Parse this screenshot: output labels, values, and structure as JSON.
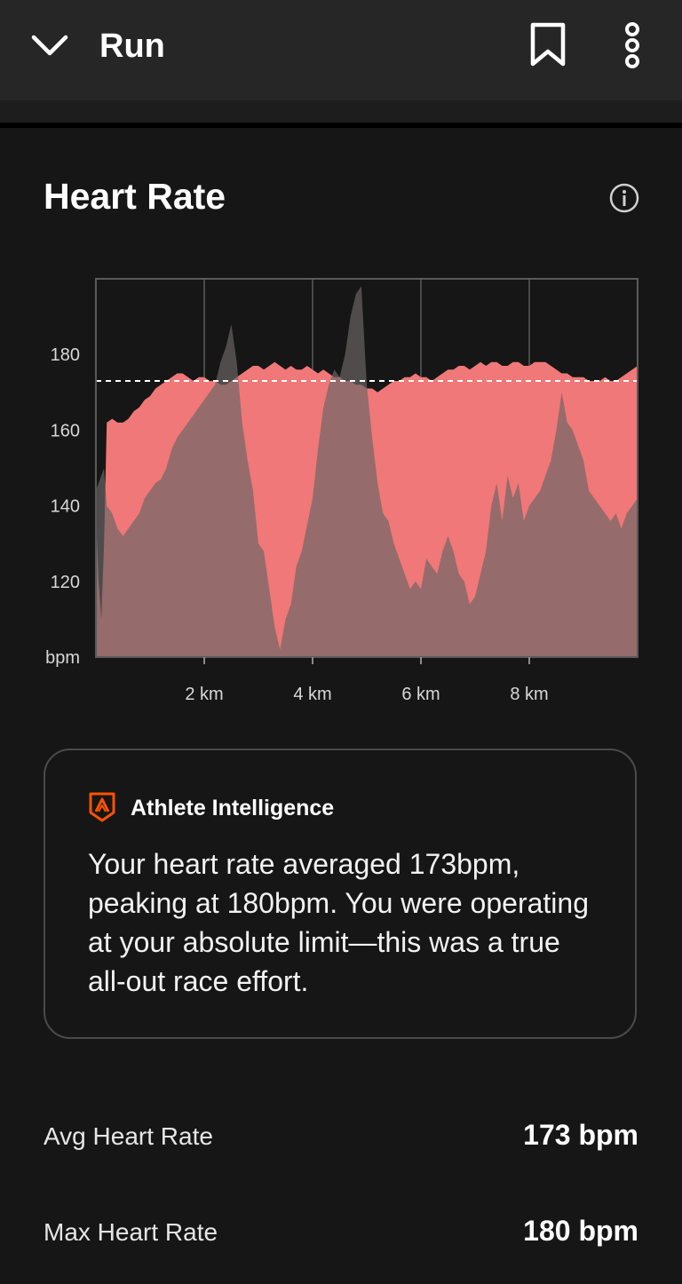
{
  "header": {
    "title": "Run",
    "icons": [
      "chevron-down-icon",
      "bookmark-icon",
      "more-vertical-icon"
    ]
  },
  "section": {
    "title": "Heart Rate",
    "info_icon": "info-icon"
  },
  "chart_data": {
    "type": "area",
    "x_unit": "km",
    "x_ticks": [
      2,
      4,
      6,
      8
    ],
    "x_tick_labels": [
      "2 km",
      "4 km",
      "6 km",
      "8 km"
    ],
    "y_ticks": [
      120,
      140,
      160,
      180
    ],
    "y_tick_labels": [
      "120",
      "140",
      "160",
      "180"
    ],
    "ylabel": "bpm",
    "xlim": [
      0,
      10
    ],
    "ylim": [
      100,
      200
    ],
    "grid": true,
    "average_line": 173,
    "colors": {
      "heart_rate": "#f07878",
      "elevation": "#6b6666",
      "avg_line": "#ffffff"
    },
    "series": [
      {
        "x": [
          0,
          0.05,
          0.1,
          0.15,
          0.2,
          0.3,
          0.4,
          0.5,
          0.6,
          0.7,
          0.8,
          0.9,
          1.0,
          1.1,
          1.2,
          1.3,
          1.4,
          1.5,
          1.6,
          1.7,
          1.8,
          1.9,
          2.0,
          2.1,
          2.2,
          2.3,
          2.4,
          2.5,
          2.6,
          2.7,
          2.8,
          2.9,
          3.0,
          3.1,
          3.2,
          3.3,
          3.4,
          3.5,
          3.6,
          3.7,
          3.8,
          3.9,
          4.0,
          4.1,
          4.2,
          4.3,
          4.4,
          4.5,
          4.6,
          4.7,
          4.8,
          4.9,
          5.0,
          5.1,
          5.2,
          5.3,
          5.4,
          5.5,
          5.6,
          5.7,
          5.8,
          5.9,
          6.0,
          6.1,
          6.2,
          6.3,
          6.4,
          6.5,
          6.6,
          6.7,
          6.8,
          6.9,
          7.0,
          7.1,
          7.2,
          7.3,
          7.4,
          7.5,
          7.6,
          7.7,
          7.8,
          7.9,
          8.0,
          8.1,
          8.2,
          8.3,
          8.4,
          8.5,
          8.6,
          8.7,
          8.8,
          8.9,
          9.0,
          9.1,
          9.2,
          9.3,
          9.4,
          9.5,
          9.6,
          9.7,
          9.8,
          9.9,
          10.0
        ],
        "y": [
          138,
          120,
          110,
          130,
          162,
          163,
          162,
          162,
          163,
          165,
          166,
          168,
          169,
          171,
          172,
          173,
          174,
          175,
          175,
          174,
          173,
          174,
          174,
          173,
          173,
          172,
          172,
          173,
          174,
          175,
          176,
          177,
          177,
          176,
          177,
          178,
          177,
          176,
          177,
          176,
          176,
          177,
          176,
          175,
          176,
          175,
          174,
          174,
          173,
          173,
          172,
          172,
          171,
          171,
          170,
          171,
          172,
          173,
          173,
          174,
          174,
          175,
          174,
          174,
          173,
          174,
          175,
          176,
          176,
          177,
          177,
          176,
          177,
          178,
          177,
          178,
          178,
          177,
          177,
          178,
          178,
          177,
          177,
          178,
          178,
          178,
          177,
          176,
          175,
          175,
          174,
          174,
          174,
          173,
          173,
          173,
          174,
          173,
          173,
          174,
          175,
          176,
          177
        ]
      },
      {
        "name_hidden": true,
        "x": [
          0,
          0.1,
          0.15,
          0.2,
          0.3,
          0.4,
          0.5,
          0.6,
          0.7,
          0.8,
          0.9,
          1.0,
          1.1,
          1.2,
          1.3,
          1.4,
          1.5,
          1.6,
          1.7,
          1.8,
          1.9,
          2.0,
          2.1,
          2.2,
          2.3,
          2.4,
          2.5,
          2.6,
          2.7,
          2.8,
          2.9,
          3.0,
          3.1,
          3.2,
          3.3,
          3.4,
          3.5,
          3.6,
          3.7,
          3.8,
          3.9,
          4.0,
          4.1,
          4.2,
          4.3,
          4.4,
          4.5,
          4.6,
          4.7,
          4.8,
          4.9,
          5.0,
          5.1,
          5.2,
          5.3,
          5.4,
          5.5,
          5.6,
          5.7,
          5.8,
          5.9,
          6.0,
          6.1,
          6.2,
          6.3,
          6.4,
          6.5,
          6.6,
          6.7,
          6.8,
          6.9,
          7.0,
          7.1,
          7.2,
          7.3,
          7.4,
          7.5,
          7.6,
          7.7,
          7.8,
          7.9,
          8.0,
          8.1,
          8.2,
          8.3,
          8.4,
          8.5,
          8.6,
          8.7,
          8.8,
          8.9,
          9.0,
          9.1,
          9.2,
          9.3,
          9.4,
          9.5,
          9.6,
          9.7,
          9.8,
          9.9,
          10.0
        ],
        "y": [
          44,
          48,
          50,
          40,
          38,
          34,
          32,
          34,
          36,
          38,
          42,
          44,
          46,
          47,
          50,
          55,
          58,
          60,
          62,
          64,
          66,
          68,
          70,
          72,
          78,
          82,
          88,
          78,
          62,
          52,
          44,
          30,
          28,
          18,
          8,
          2,
          10,
          14,
          24,
          28,
          35,
          42,
          55,
          66,
          72,
          76,
          74,
          80,
          90,
          96,
          98,
          72,
          58,
          46,
          38,
          36,
          30,
          26,
          22,
          18,
          20,
          18,
          26,
          24,
          22,
          28,
          32,
          28,
          22,
          20,
          14,
          16,
          22,
          28,
          40,
          46,
          36,
          48,
          42,
          46,
          36,
          40,
          42,
          44,
          48,
          52,
          60,
          70,
          62,
          60,
          56,
          52,
          44,
          42,
          40,
          38,
          36,
          38,
          34,
          38,
          40,
          42
        ]
      }
    ]
  },
  "ai_card": {
    "logo_icon": "athlete-intelligence-icon",
    "title": "Athlete Intelligence",
    "text": "Your heart rate averaged 173bpm, peaking at 180bpm. You were operating at your absolute limit—this was a true all-out race effort."
  },
  "stats": [
    {
      "label": "Avg Heart Rate",
      "value": "173 bpm"
    },
    {
      "label": "Max Heart Rate",
      "value": "180 bpm"
    }
  ]
}
